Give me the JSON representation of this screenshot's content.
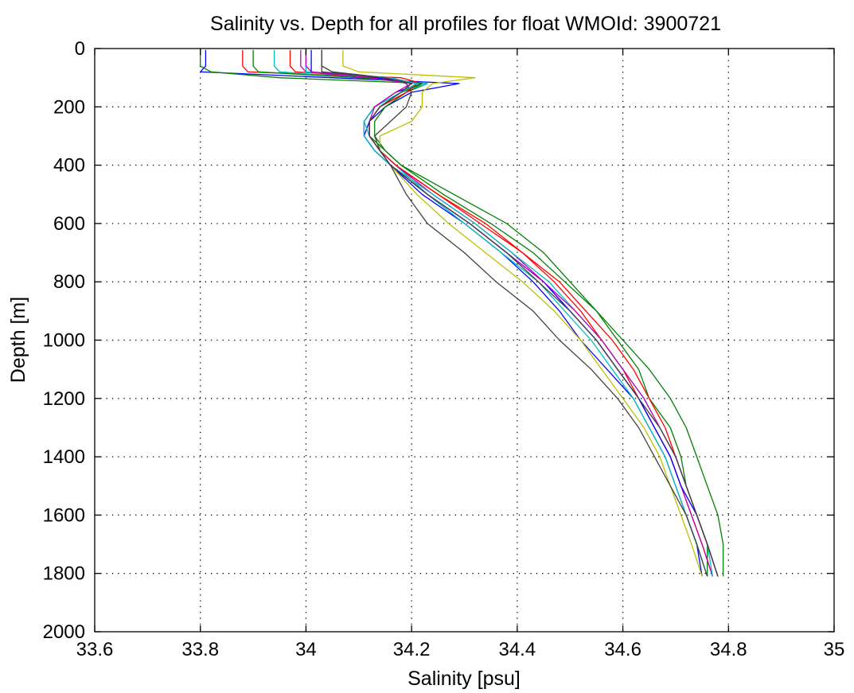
{
  "chart_data": {
    "type": "line",
    "title": "Salinity vs. Depth for all profiles for float WMOId: 3900721",
    "xlabel": "Salinity [psu]",
    "ylabel": "Depth [m]",
    "xlim": [
      33.6,
      35
    ],
    "ylim": [
      0,
      2000
    ],
    "y_reversed": true,
    "grid": true,
    "x_ticks": [
      33.6,
      33.8,
      34,
      34.2,
      34.4,
      34.6,
      34.8,
      35
    ],
    "x_tick_labels": [
      "33.6",
      "33.8",
      "34",
      "34.2",
      "34.4",
      "34.6",
      "34.8",
      "35"
    ],
    "y_ticks": [
      0,
      200,
      400,
      600,
      800,
      1000,
      1200,
      1400,
      1600,
      1800,
      2000
    ],
    "y_tick_labels": [
      "0",
      "200",
      "400",
      "600",
      "800",
      "1000",
      "1200",
      "1400",
      "1600",
      "1800",
      "2000"
    ],
    "depth": [
      5,
      60,
      80,
      100,
      120,
      150,
      200,
      250,
      300,
      350,
      400,
      500,
      600,
      700,
      800,
      900,
      1000,
      1100,
      1200,
      1300,
      1400,
      1500,
      1600,
      1700,
      1810
    ],
    "series": [
      {
        "color": "#0000ff",
        "salinity": [
          33.81,
          33.81,
          33.8,
          34.05,
          34.29,
          34.2,
          34.15,
          34.12,
          34.11,
          34.13,
          34.16,
          34.22,
          34.3,
          34.37,
          34.43,
          34.48,
          34.52,
          34.57,
          34.62,
          34.65,
          34.68,
          34.7,
          34.72,
          34.74,
          34.75
        ]
      },
      {
        "color": "#008000",
        "salinity": [
          33.8,
          33.8,
          33.82,
          33.95,
          34.23,
          34.19,
          34.15,
          34.13,
          34.13,
          34.15,
          34.18,
          34.28,
          34.38,
          34.45,
          34.5,
          34.55,
          34.59,
          34.63,
          34.65,
          34.69,
          34.71,
          34.72,
          34.74,
          34.76,
          34.76
        ]
      },
      {
        "color": "#ff0000",
        "salinity": [
          33.88,
          33.88,
          33.89,
          34.18,
          34.22,
          34.19,
          34.14,
          34.12,
          34.12,
          34.14,
          34.17,
          34.25,
          34.34,
          34.41,
          34.47,
          34.52,
          34.56,
          34.6,
          34.63,
          34.66,
          34.69,
          34.71,
          34.73,
          34.75,
          34.77
        ]
      },
      {
        "color": "#00bfbf",
        "salinity": [
          33.94,
          33.94,
          33.95,
          34.1,
          34.23,
          34.18,
          34.13,
          34.11,
          34.12,
          34.14,
          34.17,
          34.23,
          34.3,
          34.37,
          34.44,
          34.49,
          34.54,
          34.58,
          34.62,
          34.65,
          34.68,
          34.7,
          34.72,
          34.74,
          34.76
        ]
      },
      {
        "color": "#bf00bf",
        "salinity": [
          33.99,
          33.99,
          34.0,
          34.12,
          34.21,
          34.18,
          34.14,
          34.12,
          34.12,
          34.14,
          34.17,
          34.24,
          34.32,
          34.39,
          34.45,
          34.5,
          34.55,
          34.59,
          34.63,
          34.66,
          34.69,
          34.71,
          34.73,
          34.75,
          34.77
        ]
      },
      {
        "color": "#bfbf00",
        "salinity": [
          34.07,
          34.07,
          34.1,
          34.32,
          34.24,
          34.22,
          34.22,
          34.2,
          34.14,
          34.14,
          34.16,
          34.21,
          34.27,
          34.34,
          34.41,
          34.47,
          34.52,
          34.56,
          34.6,
          34.64,
          34.67,
          34.69,
          34.71,
          34.73,
          34.75
        ]
      },
      {
        "color": "#404040",
        "salinity": [
          34.03,
          34.03,
          34.05,
          34.15,
          34.19,
          34.2,
          34.19,
          34.16,
          34.13,
          34.14,
          34.16,
          34.19,
          34.23,
          34.3,
          34.36,
          34.43,
          34.48,
          34.54,
          34.59,
          34.63,
          34.66,
          34.69,
          34.72,
          34.74,
          34.76
        ]
      },
      {
        "color": "#0000ff",
        "salinity": [
          34.01,
          34.01,
          34.01,
          34.13,
          34.22,
          34.17,
          34.13,
          34.11,
          34.11,
          34.13,
          34.16,
          34.23,
          34.31,
          34.38,
          34.45,
          34.5,
          34.55,
          34.59,
          34.63,
          34.66,
          34.69,
          34.71,
          34.74,
          34.76,
          34.78
        ]
      },
      {
        "color": "#008000",
        "salinity": [
          33.9,
          33.9,
          33.91,
          34.1,
          34.22,
          34.18,
          34.14,
          34.12,
          34.12,
          34.15,
          34.18,
          34.26,
          34.35,
          34.43,
          34.49,
          34.55,
          34.6,
          34.65,
          34.69,
          34.72,
          34.74,
          34.76,
          34.78,
          34.79,
          34.79
        ]
      },
      {
        "color": "#ff0000",
        "salinity": [
          33.97,
          33.97,
          33.98,
          34.16,
          34.21,
          34.19,
          34.14,
          34.12,
          34.12,
          34.14,
          34.17,
          34.25,
          34.33,
          34.41,
          34.48,
          34.53,
          34.58,
          34.62,
          34.65,
          34.68,
          34.7,
          34.72,
          34.74,
          34.76,
          34.78
        ]
      },
      {
        "color": "#00bfbf",
        "salinity": [
          34.0,
          34.0,
          34.0,
          34.16,
          34.21,
          34.18,
          34.13,
          34.11,
          34.11,
          34.13,
          34.16,
          34.24,
          34.32,
          34.39,
          34.46,
          34.51,
          34.56,
          34.6,
          34.64,
          34.67,
          34.7,
          34.72,
          34.74,
          34.76,
          34.77
        ]
      },
      {
        "color": "#bf00bf",
        "salinity": [
          34.0,
          34.0,
          34.01,
          34.12,
          34.2,
          34.17,
          34.13,
          34.12,
          34.12,
          34.14,
          34.16,
          34.23,
          34.31,
          34.38,
          34.45,
          34.51,
          34.56,
          34.6,
          34.64,
          34.67,
          34.7,
          34.72,
          34.74,
          34.76,
          34.78
        ]
      },
      {
        "color": "#404040",
        "salinity": [
          34.03,
          34.03,
          34.03,
          34.15,
          34.2,
          34.18,
          34.14,
          34.12,
          34.12,
          34.14,
          34.16,
          34.23,
          34.31,
          34.38,
          34.44,
          34.5,
          34.55,
          34.59,
          34.63,
          34.67,
          34.7,
          34.72,
          34.74,
          34.76,
          34.78
        ]
      }
    ]
  }
}
